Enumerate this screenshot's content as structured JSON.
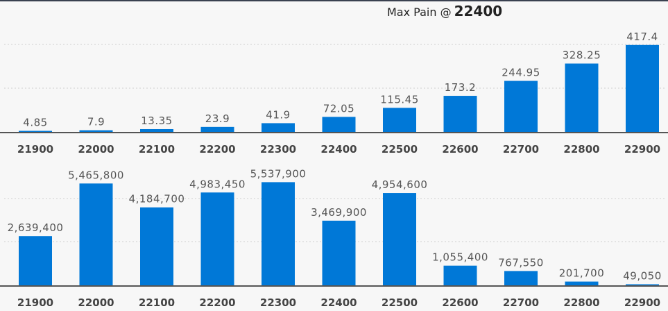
{
  "title": {
    "prefix": "Max Pain @",
    "value": "22400"
  },
  "chart_data": [
    {
      "type": "bar",
      "categories": [
        "21900",
        "22000",
        "22100",
        "22200",
        "22300",
        "22400",
        "22500",
        "22600",
        "22700",
        "22800",
        "22900"
      ],
      "values": [
        4.85,
        7.9,
        13.35,
        23.9,
        41.9,
        72.05,
        115.45,
        173.2,
        244.95,
        328.25,
        417.4
      ],
      "value_labels": [
        "4.85",
        "7.9",
        "13.35",
        "23.9",
        "41.9",
        "72.05",
        "115.45",
        "173.2",
        "244.95",
        "328.25",
        "417.4"
      ],
      "ylim": [
        0,
        500
      ],
      "grid": true,
      "color": "#0078d7"
    },
    {
      "type": "bar",
      "categories": [
        "21900",
        "22000",
        "22100",
        "22200",
        "22300",
        "22400",
        "22500",
        "22600",
        "22700",
        "22800",
        "22900"
      ],
      "values": [
        2639400,
        5465800,
        4184700,
        4983450,
        5537900,
        3469900,
        4954600,
        1055400,
        767550,
        201700,
        49050
      ],
      "value_labels": [
        "2,639,400",
        "5,465,800",
        "4,184,700",
        "4,983,450",
        "5,537,900",
        "3,469,900",
        "4,954,600",
        "1,055,400",
        "767,550",
        "201,700",
        "49,050"
      ],
      "ylim": [
        0,
        6000000
      ],
      "grid": true,
      "color": "#0078d7"
    }
  ]
}
